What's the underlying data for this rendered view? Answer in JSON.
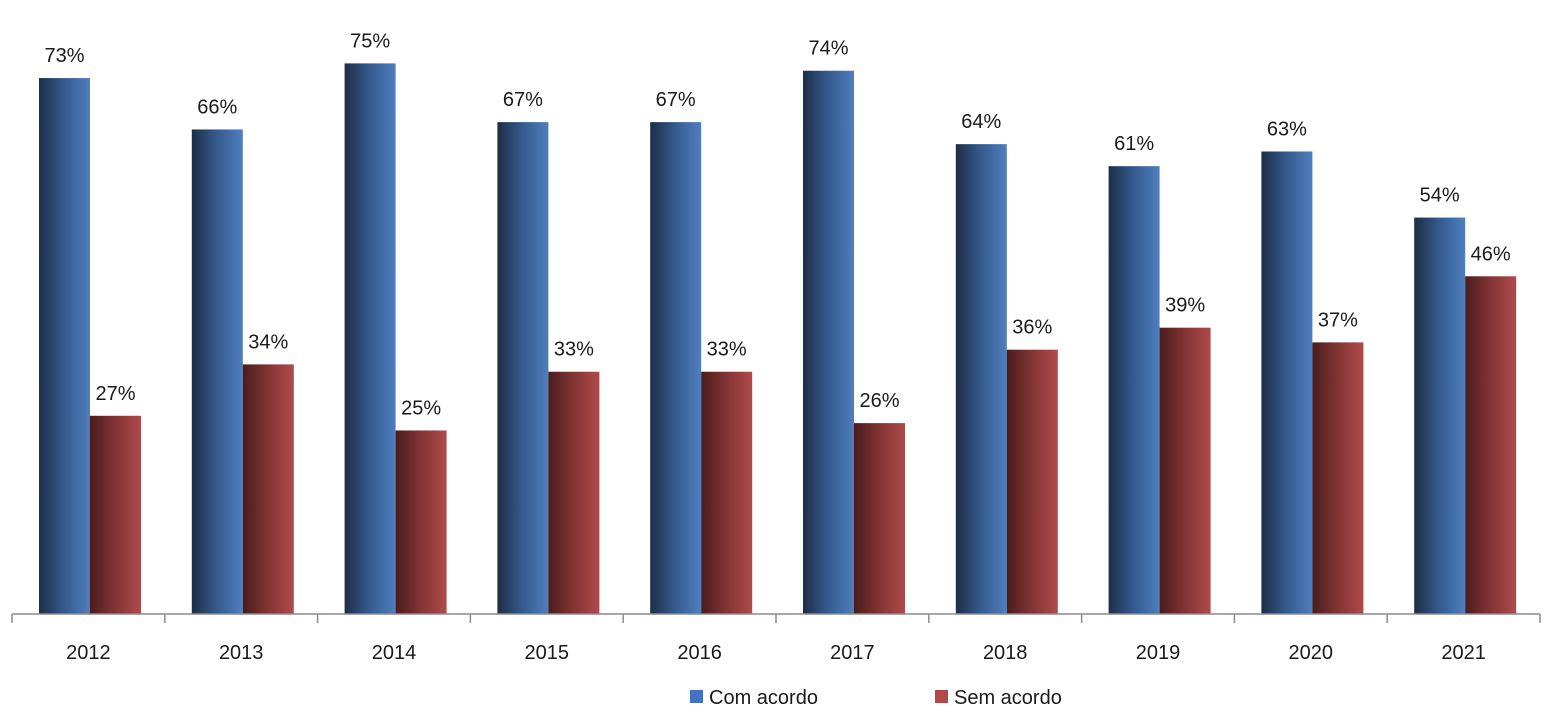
{
  "chart_data": {
    "type": "bar",
    "categories": [
      "2012",
      "2013",
      "2014",
      "2015",
      "2016",
      "2017",
      "2018",
      "2019",
      "2020",
      "2021"
    ],
    "series": [
      {
        "name": "Com acordo",
        "values": [
          73,
          66,
          75,
          67,
          67,
          74,
          64,
          61,
          63,
          54
        ],
        "labels": [
          "73%",
          "66%",
          "75%",
          "67%",
          "67%",
          "74%",
          "64%",
          "61%",
          "63%",
          "54%"
        ],
        "color": "#4472C4"
      },
      {
        "name": "Sem acordo",
        "values": [
          27,
          34,
          25,
          33,
          33,
          26,
          36,
          39,
          37,
          46
        ],
        "labels": [
          "27%",
          "34%",
          "25%",
          "33%",
          "33%",
          "26%",
          "36%",
          "39%",
          "37%",
          "46%"
        ],
        "color": "#B04A4A"
      }
    ],
    "title": "",
    "xlabel": "",
    "ylabel": "",
    "ylim": [
      0,
      82
    ],
    "unit": "%",
    "grid": false,
    "y_axis_visible": false,
    "legend_position": "bottom"
  }
}
